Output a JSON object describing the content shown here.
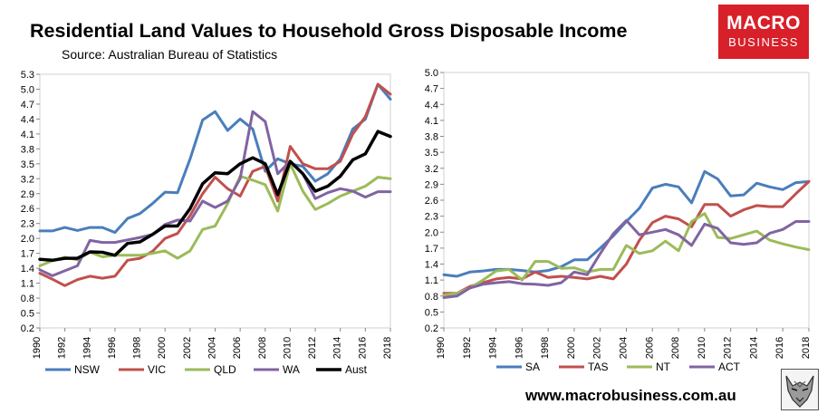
{
  "header": {
    "title": "Residential Land Values to Household Gross Disposable Income",
    "source": "Source: Australian Bureau of Statistics"
  },
  "logo": {
    "line1": "MACRO",
    "line2": "BUSINESS",
    "color": "#d7202a"
  },
  "footer": {
    "website": "www.macrobusiness.com.au"
  },
  "chart_data": [
    {
      "type": "line",
      "title": "",
      "xlabel": "",
      "ylabel": "",
      "ylim": [
        0.2,
        5.3
      ],
      "yticks": [
        "5.3",
        "5.0",
        "4.7",
        "4.4",
        "4.1",
        "3.8",
        "3.5",
        "3.2",
        "2.9",
        "2.6",
        "2.3",
        "2.0",
        "1.7",
        "1.4",
        "1.1",
        "0.8",
        "0.5",
        "0.2"
      ],
      "xticks": [
        "1990",
        "1992",
        "1994",
        "1996",
        "1998",
        "2000",
        "2002",
        "2004",
        "2006",
        "2008",
        "2010",
        "2012",
        "2014",
        "2016",
        "2018"
      ],
      "x": [
        1990,
        1991,
        1992,
        1993,
        1994,
        1995,
        1996,
        1997,
        1998,
        1999,
        2000,
        2001,
        2002,
        2003,
        2004,
        2005,
        2006,
        2007,
        2008,
        2009,
        2010,
        2011,
        2012,
        2013,
        2014,
        2015,
        2016,
        2017,
        2018
      ],
      "legend_position": "bottom",
      "series": [
        {
          "name": "NSW",
          "color": "#4a7ebb",
          "width": 3,
          "values": [
            2.15,
            2.15,
            2.22,
            2.16,
            2.22,
            2.22,
            2.12,
            2.4,
            2.5,
            2.7,
            2.93,
            2.92,
            3.6,
            4.38,
            4.55,
            4.17,
            4.4,
            4.2,
            3.35,
            3.6,
            3.5,
            3.45,
            3.15,
            3.3,
            3.6,
            4.2,
            4.4,
            5.1,
            4.8
          ]
        },
        {
          "name": "VIC",
          "color": "#c0504d",
          "width": 3,
          "values": [
            1.3,
            1.18,
            1.05,
            1.17,
            1.24,
            1.2,
            1.24,
            1.56,
            1.6,
            1.74,
            2.0,
            2.1,
            2.46,
            2.9,
            3.23,
            3.0,
            2.85,
            3.35,
            3.45,
            2.75,
            3.85,
            3.5,
            3.4,
            3.4,
            3.55,
            4.1,
            4.45,
            5.1,
            4.9
          ]
        },
        {
          "name": "QLD",
          "color": "#9bbb59",
          "width": 3,
          "values": [
            1.45,
            1.55,
            1.62,
            1.57,
            1.72,
            1.63,
            1.66,
            1.66,
            1.66,
            1.7,
            1.75,
            1.6,
            1.75,
            2.18,
            2.25,
            2.7,
            3.25,
            3.17,
            3.08,
            2.55,
            3.5,
            2.95,
            2.58,
            2.7,
            2.85,
            2.95,
            3.05,
            3.23,
            3.2
          ]
        },
        {
          "name": "WA",
          "color": "#8064a2",
          "width": 3,
          "values": [
            1.37,
            1.25,
            1.35,
            1.45,
            1.96,
            1.92,
            1.92,
            1.97,
            2.02,
            2.08,
            2.28,
            2.37,
            2.35,
            2.75,
            2.62,
            2.75,
            3.2,
            4.55,
            4.35,
            3.3,
            3.55,
            3.3,
            2.8,
            2.92,
            3.0,
            2.95,
            2.83,
            2.94,
            2.94
          ]
        },
        {
          "name": "Aust",
          "color": "#000000",
          "width": 3.5,
          "values": [
            1.58,
            1.56,
            1.6,
            1.6,
            1.73,
            1.72,
            1.66,
            1.9,
            1.93,
            2.08,
            2.25,
            2.25,
            2.6,
            3.1,
            3.32,
            3.3,
            3.5,
            3.62,
            3.5,
            2.88,
            3.55,
            3.3,
            2.95,
            3.05,
            3.25,
            3.58,
            3.7,
            4.15,
            4.05
          ]
        }
      ]
    },
    {
      "type": "line",
      "title": "",
      "xlabel": "",
      "ylabel": "",
      "ylim": [
        0.2,
        5.0
      ],
      "yticks": [
        "5.0",
        "4.7",
        "4.4",
        "4.1",
        "3.8",
        "3.5",
        "3.2",
        "2.9",
        "2.6",
        "2.3",
        "2.0",
        "1.7",
        "1.4",
        "1.1",
        "0.8",
        "0.5",
        "0.2"
      ],
      "xticks": [
        "1990",
        "1992",
        "1994",
        "1996",
        "1998",
        "2000",
        "2002",
        "2004",
        "2006",
        "2008",
        "2010",
        "2012",
        "2014",
        "2016",
        "2018"
      ],
      "x": [
        1990,
        1991,
        1992,
        1993,
        1994,
        1995,
        1996,
        1997,
        1998,
        1999,
        2000,
        2001,
        2002,
        2003,
        2004,
        2005,
        2006,
        2007,
        2008,
        2009,
        2010,
        2011,
        2012,
        2013,
        2014,
        2015,
        2016,
        2017,
        2018
      ],
      "legend_position": "bottom",
      "series": [
        {
          "name": "SA",
          "color": "#4a7ebb",
          "width": 3,
          "values": [
            1.2,
            1.17,
            1.25,
            1.27,
            1.3,
            1.3,
            1.28,
            1.25,
            1.28,
            1.35,
            1.48,
            1.48,
            1.7,
            1.93,
            2.2,
            2.45,
            2.83,
            2.9,
            2.85,
            2.55,
            3.14,
            3.0,
            2.68,
            2.7,
            2.92,
            2.85,
            2.8,
            2.93,
            2.95
          ]
        },
        {
          "name": "TAS",
          "color": "#c0504d",
          "width": 3,
          "values": [
            0.85,
            0.85,
            0.98,
            1.05,
            1.12,
            1.15,
            1.12,
            1.25,
            1.15,
            1.17,
            1.15,
            1.12,
            1.17,
            1.12,
            1.4,
            1.85,
            2.18,
            2.3,
            2.25,
            2.1,
            2.52,
            2.52,
            2.3,
            2.42,
            2.5,
            2.48,
            2.48,
            2.72,
            2.95
          ]
        },
        {
          "name": "NT",
          "color": "#9bbb59",
          "width": 3,
          "values": [
            0.82,
            0.85,
            0.95,
            1.1,
            1.27,
            1.3,
            1.1,
            1.45,
            1.45,
            1.32,
            1.33,
            1.25,
            1.3,
            1.3,
            1.75,
            1.6,
            1.65,
            1.83,
            1.65,
            2.2,
            2.35,
            1.9,
            1.88,
            1.95,
            2.02,
            1.85,
            1.78,
            1.72,
            1.67
          ]
        },
        {
          "name": "ACT",
          "color": "#8064a2",
          "width": 3,
          "values": [
            0.77,
            0.8,
            0.95,
            1.02,
            1.05,
            1.07,
            1.03,
            1.02,
            1.0,
            1.05,
            1.25,
            1.2,
            1.6,
            1.97,
            2.22,
            1.95,
            2.0,
            2.05,
            1.95,
            1.75,
            2.15,
            2.07,
            1.8,
            1.77,
            1.8,
            1.98,
            2.05,
            2.2,
            2.2
          ]
        }
      ]
    }
  ]
}
